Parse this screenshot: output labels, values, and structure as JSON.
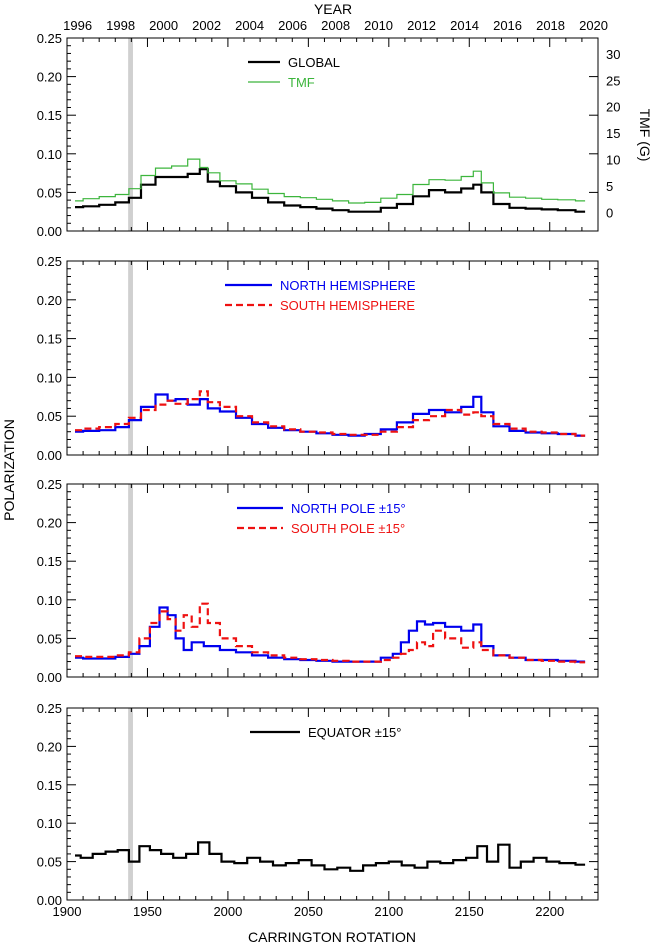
{
  "figure": {
    "ylabel": "POLARIZATION",
    "top_axis_title": "YEAR",
    "bottom_axis_title": "CARRINGTON ROTATION",
    "year_ticks": [
      "1996",
      "1998",
      "2000",
      "2002",
      "2004",
      "2006",
      "2008",
      "2010",
      "2012",
      "2014",
      "2016",
      "2018",
      "2020"
    ],
    "cr_ticks": [
      "1900",
      "1950",
      "2000",
      "2050",
      "2100",
      "2150",
      "2200"
    ],
    "y_ticks": [
      "0.00",
      "0.05",
      "0.10",
      "0.15",
      "0.20",
      "0.25"
    ],
    "tmf_ticks": [
      "0",
      "5",
      "10",
      "15",
      "20",
      "25",
      "30"
    ],
    "right_axis_title": "TMF (G)",
    "gray_band_cr": [
      1938,
      1941
    ]
  },
  "chart_data": [
    {
      "type": "line",
      "panel": 1,
      "title": "",
      "xlim": [
        1900,
        2230
      ],
      "ylim": [
        0,
        0.25
      ],
      "y2lim": [
        -3.5,
        33
      ],
      "series": [
        {
          "name": "GLOBAL",
          "color": "#000000",
          "dash": "solid",
          "width": 2.2,
          "x": [
            1905,
            1915,
            1925,
            1935,
            1942,
            1950,
            1960,
            1970,
            1980,
            1985,
            1990,
            2000,
            2010,
            2020,
            2030,
            2040,
            2050,
            2060,
            2070,
            2080,
            2090,
            2100,
            2110,
            2120,
            2130,
            2140,
            2150,
            2155,
            2160,
            2170,
            2180,
            2190,
            2200,
            2210,
            2222
          ],
          "y": [
            0.031,
            0.032,
            0.034,
            0.037,
            0.043,
            0.06,
            0.07,
            0.07,
            0.074,
            0.08,
            0.064,
            0.058,
            0.05,
            0.043,
            0.037,
            0.033,
            0.031,
            0.029,
            0.027,
            0.025,
            0.025,
            0.03,
            0.035,
            0.045,
            0.053,
            0.05,
            0.055,
            0.06,
            0.05,
            0.035,
            0.03,
            0.029,
            0.028,
            0.027,
            0.025
          ]
        },
        {
          "name": "TMF",
          "color": "#3cb53c",
          "dash": "solid",
          "width": 1.2,
          "axis": "right",
          "x": [
            1905,
            1915,
            1925,
            1935,
            1942,
            1950,
            1960,
            1970,
            1980,
            1985,
            1990,
            2000,
            2010,
            2020,
            2030,
            2040,
            2050,
            2060,
            2070,
            2080,
            2090,
            2100,
            2110,
            2120,
            2130,
            2140,
            2150,
            2155,
            2160,
            2170,
            2180,
            2190,
            2200,
            2210,
            2222
          ],
          "y": [
            2.2,
            2.6,
            3.0,
            3.4,
            4.5,
            7.0,
            8.4,
            8.8,
            10.1,
            8.5,
            7.5,
            6.0,
            5.4,
            4.4,
            3.6,
            3.0,
            2.8,
            2.5,
            2.2,
            1.8,
            1.9,
            2.7,
            3.4,
            5.3,
            6.2,
            6.1,
            6.8,
            7.8,
            5.6,
            3.7,
            2.9,
            2.7,
            2.5,
            2.4,
            2.2
          ]
        }
      ]
    },
    {
      "type": "line",
      "panel": 2,
      "title": "",
      "xlim": [
        1900,
        2230
      ],
      "ylim": [
        0,
        0.25
      ],
      "series": [
        {
          "name": "NORTH HEMISPHERE",
          "color": "#0000ee",
          "dash": "solid",
          "width": 2.2,
          "x": [
            1905,
            1915,
            1925,
            1935,
            1942,
            1950,
            1960,
            1965,
            1970,
            1980,
            1985,
            1990,
            2000,
            2010,
            2020,
            2030,
            2040,
            2050,
            2060,
            2070,
            2080,
            2090,
            2100,
            2110,
            2120,
            2130,
            2140,
            2150,
            2155,
            2160,
            2170,
            2180,
            2190,
            2200,
            2210,
            2222
          ],
          "y": [
            0.03,
            0.031,
            0.032,
            0.036,
            0.045,
            0.062,
            0.078,
            0.07,
            0.072,
            0.065,
            0.072,
            0.06,
            0.056,
            0.048,
            0.04,
            0.035,
            0.032,
            0.03,
            0.028,
            0.026,
            0.025,
            0.027,
            0.033,
            0.042,
            0.053,
            0.058,
            0.055,
            0.062,
            0.075,
            0.055,
            0.037,
            0.031,
            0.029,
            0.028,
            0.027,
            0.025
          ]
        },
        {
          "name": "SOUTH HEMISPHERE",
          "color": "#ee1111",
          "dash": "dashed",
          "width": 2.2,
          "x": [
            1905,
            1915,
            1925,
            1935,
            1942,
            1950,
            1960,
            1965,
            1970,
            1980,
            1985,
            1990,
            2000,
            2010,
            2020,
            2030,
            2040,
            2050,
            2060,
            2070,
            2080,
            2090,
            2100,
            2110,
            2120,
            2130,
            2140,
            2150,
            2155,
            2160,
            2170,
            2180,
            2190,
            2200,
            2210,
            2222
          ],
          "y": [
            0.032,
            0.034,
            0.036,
            0.04,
            0.048,
            0.058,
            0.065,
            0.07,
            0.066,
            0.072,
            0.082,
            0.068,
            0.062,
            0.05,
            0.042,
            0.037,
            0.033,
            0.03,
            0.029,
            0.027,
            0.026,
            0.026,
            0.03,
            0.036,
            0.045,
            0.05,
            0.058,
            0.052,
            0.055,
            0.05,
            0.04,
            0.034,
            0.03,
            0.029,
            0.027,
            0.025
          ]
        }
      ]
    },
    {
      "type": "line",
      "panel": 3,
      "title": "",
      "xlim": [
        1900,
        2230
      ],
      "ylim": [
        0,
        0.25
      ],
      "series": [
        {
          "name": "NORTH POLE ±15°",
          "color": "#0000ee",
          "dash": "solid",
          "width": 2.2,
          "x": [
            1905,
            1915,
            1925,
            1935,
            1942,
            1948,
            1955,
            1960,
            1965,
            1970,
            1975,
            1980,
            1990,
            2000,
            2010,
            2020,
            2030,
            2040,
            2050,
            2060,
            2070,
            2080,
            2090,
            2100,
            2105,
            2110,
            2115,
            2120,
            2125,
            2130,
            2140,
            2150,
            2155,
            2160,
            2170,
            2180,
            2190,
            2200,
            2210,
            2222
          ],
          "y": [
            0.025,
            0.024,
            0.024,
            0.026,
            0.03,
            0.04,
            0.065,
            0.09,
            0.08,
            0.05,
            0.035,
            0.045,
            0.04,
            0.035,
            0.032,
            0.028,
            0.025,
            0.023,
            0.022,
            0.021,
            0.02,
            0.02,
            0.02,
            0.025,
            0.03,
            0.045,
            0.06,
            0.072,
            0.068,
            0.07,
            0.065,
            0.06,
            0.068,
            0.04,
            0.028,
            0.025,
            0.022,
            0.022,
            0.021,
            0.02
          ]
        },
        {
          "name": "SOUTH POLE ±15°",
          "color": "#ee1111",
          "dash": "dashed",
          "width": 2.2,
          "x": [
            1905,
            1915,
            1925,
            1935,
            1942,
            1948,
            1955,
            1960,
            1965,
            1970,
            1975,
            1980,
            1985,
            1990,
            2000,
            2010,
            2020,
            2030,
            2040,
            2050,
            2060,
            2070,
            2080,
            2090,
            2100,
            2105,
            2110,
            2115,
            2120,
            2125,
            2130,
            2140,
            2150,
            2155,
            2160,
            2170,
            2180,
            2190,
            2200,
            2210,
            2222
          ],
          "y": [
            0.027,
            0.026,
            0.026,
            0.028,
            0.032,
            0.05,
            0.07,
            0.085,
            0.075,
            0.06,
            0.08,
            0.065,
            0.095,
            0.07,
            0.05,
            0.04,
            0.032,
            0.028,
            0.025,
            0.023,
            0.022,
            0.021,
            0.02,
            0.02,
            0.022,
            0.025,
            0.03,
            0.035,
            0.045,
            0.04,
            0.06,
            0.05,
            0.038,
            0.045,
            0.035,
            0.028,
            0.025,
            0.022,
            0.021,
            0.02,
            0.019
          ]
        }
      ]
    },
    {
      "type": "line",
      "panel": 4,
      "title": "",
      "xlim": [
        1900,
        2230
      ],
      "ylim": [
        0,
        0.25
      ],
      "series": [
        {
          "name": "EQUATOR ±15°",
          "color": "#000000",
          "dash": "solid",
          "width": 2.2,
          "x": [
            1905,
            1912,
            1920,
            1928,
            1935,
            1942,
            1948,
            1955,
            1962,
            1970,
            1978,
            1985,
            1992,
            2000,
            2008,
            2016,
            2024,
            2032,
            2040,
            2048,
            2056,
            2064,
            2072,
            2080,
            2088,
            2096,
            2104,
            2112,
            2120,
            2128,
            2136,
            2144,
            2152,
            2158,
            2164,
            2172,
            2178,
            2186,
            2194,
            2202,
            2210,
            2222
          ],
          "y": [
            0.058,
            0.055,
            0.06,
            0.063,
            0.065,
            0.05,
            0.07,
            0.065,
            0.06,
            0.055,
            0.06,
            0.075,
            0.06,
            0.05,
            0.048,
            0.055,
            0.05,
            0.045,
            0.048,
            0.052,
            0.045,
            0.04,
            0.042,
            0.038,
            0.045,
            0.048,
            0.05,
            0.045,
            0.042,
            0.05,
            0.048,
            0.052,
            0.055,
            0.07,
            0.05,
            0.072,
            0.042,
            0.05,
            0.055,
            0.05,
            0.048,
            0.046
          ]
        }
      ]
    }
  ]
}
